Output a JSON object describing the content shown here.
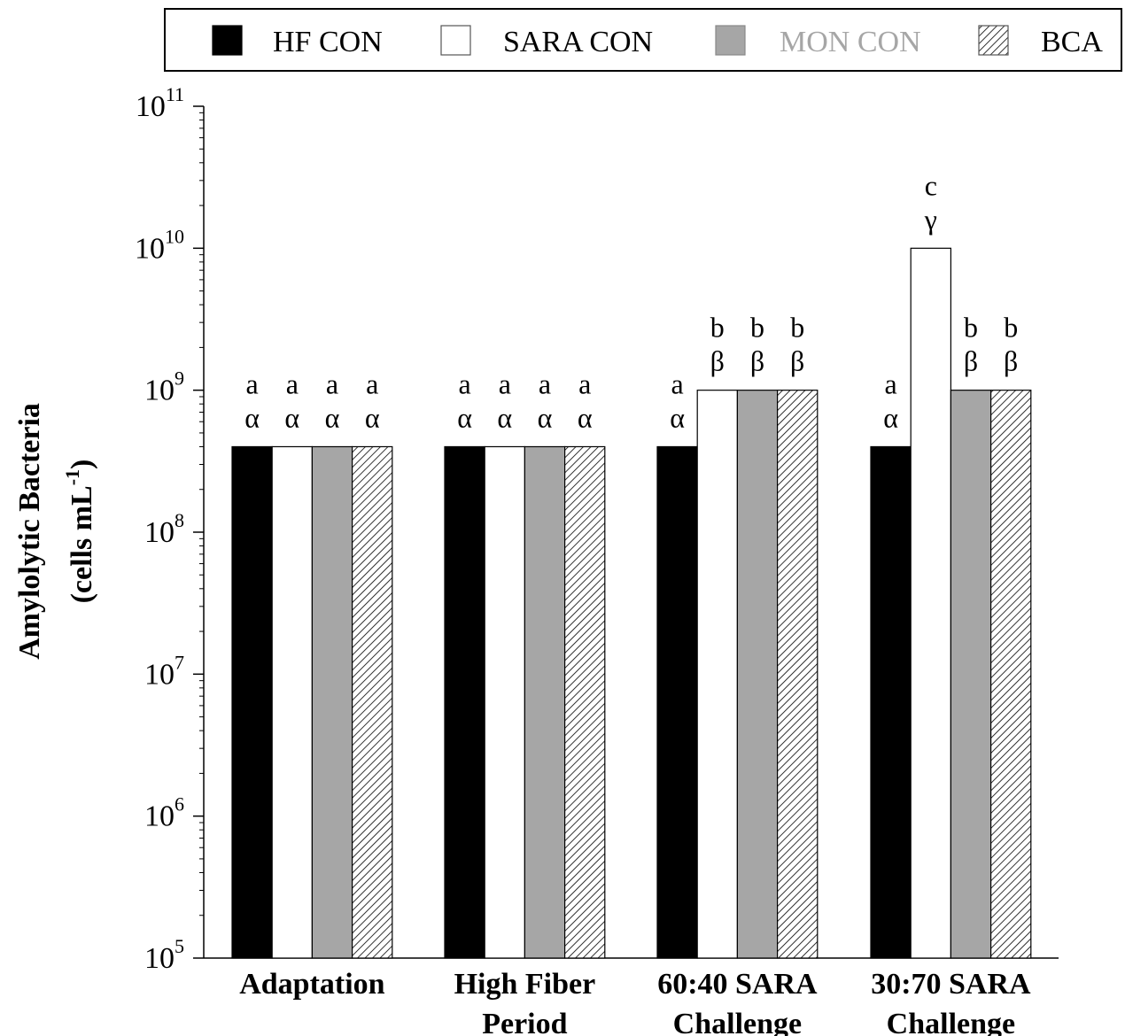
{
  "chart_data": {
    "type": "bar",
    "ylabel_lines": [
      "Amylolytic Bacteria",
      "(cells mL",
      "-1",
      ")"
    ],
    "y_scale": "log",
    "ylim": [
      100000,
      100000000000
    ],
    "y_ticks": [
      {
        "base": "10",
        "exp": "5",
        "value": 100000
      },
      {
        "base": "10",
        "exp": "6",
        "value": 1000000
      },
      {
        "base": "10",
        "exp": "7",
        "value": 10000000
      },
      {
        "base": "10",
        "exp": "8",
        "value": 100000000
      },
      {
        "base": "10",
        "exp": "9",
        "value": 1000000000
      },
      {
        "base": "10",
        "exp": "10",
        "value": 10000000000
      },
      {
        "base": "10",
        "exp": "11",
        "value": 100000000000
      }
    ],
    "categories": [
      [
        "Adaptation"
      ],
      [
        "High Fiber",
        "Period"
      ],
      [
        "60:40 SARA",
        "Challenge"
      ],
      [
        "30:70 SARA",
        "Challenge"
      ]
    ],
    "legend_position": "top",
    "series": [
      {
        "name": "HF CON",
        "fill": "#000000",
        "pattern": "solid",
        "values": [
          400000000,
          400000000,
          400000000,
          400000000
        ],
        "letters": [
          "a",
          "a",
          "a",
          "a"
        ],
        "greek": [
          "α",
          "α",
          "α",
          "α"
        ]
      },
      {
        "name": "SARA CON",
        "fill": "#ffffff",
        "pattern": "solid",
        "values": [
          400000000,
          400000000,
          1000000000,
          10000000000
        ],
        "letters": [
          "a",
          "a",
          "b",
          "c"
        ],
        "greek": [
          "α",
          "α",
          "β",
          "γ"
        ]
      },
      {
        "name": "MON CON",
        "fill": "#a6a6a6",
        "pattern": "solid",
        "label_color": "#a6a6a6",
        "values": [
          400000000,
          400000000,
          1000000000,
          1000000000
        ],
        "letters": [
          "a",
          "a",
          "b",
          "b"
        ],
        "greek": [
          "α",
          "α",
          "β",
          "β"
        ]
      },
      {
        "name": "BCA",
        "fill": "#ffffff",
        "pattern": "diagonal-hatch",
        "values": [
          400000000,
          400000000,
          1000000000,
          1000000000
        ],
        "letters": [
          "a",
          "a",
          "b",
          "b"
        ],
        "greek": [
          "α",
          "α",
          "β",
          "β"
        ]
      }
    ]
  }
}
